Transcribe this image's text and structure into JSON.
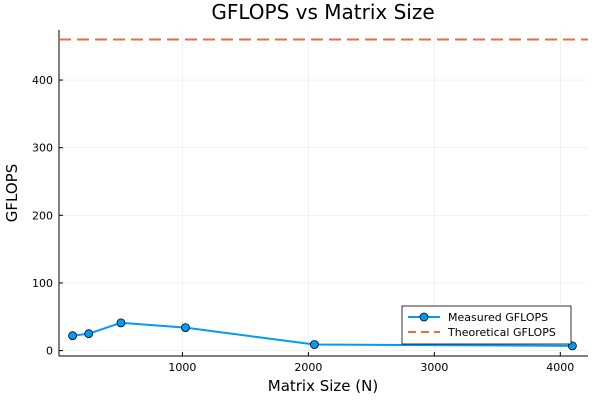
{
  "chart_data": {
    "type": "line",
    "title": "GFLOPS vs Matrix Size",
    "xlabel": "Matrix Size (N)",
    "ylabel": "GFLOPS",
    "xlim": [
      20,
      4220
    ],
    "ylim": [
      -8,
      474
    ],
    "xticks": [
      1000,
      2000,
      3000,
      4000
    ],
    "yticks": [
      0,
      100,
      200,
      300,
      400
    ],
    "grid": true,
    "legend_position": "bottom-right",
    "series": [
      {
        "name": "Measured GFLOPS",
        "style": "line-marker",
        "color": "#009af9",
        "x": [
          128,
          256,
          512,
          1024,
          2048,
          4096
        ],
        "y": [
          22,
          25,
          41,
          34,
          9,
          7
        ]
      },
      {
        "name": "Theoretical GFLOPS",
        "style": "dashed",
        "color": "#e26f46",
        "x": [
          20,
          4220
        ],
        "y": [
          460,
          460
        ]
      }
    ]
  }
}
